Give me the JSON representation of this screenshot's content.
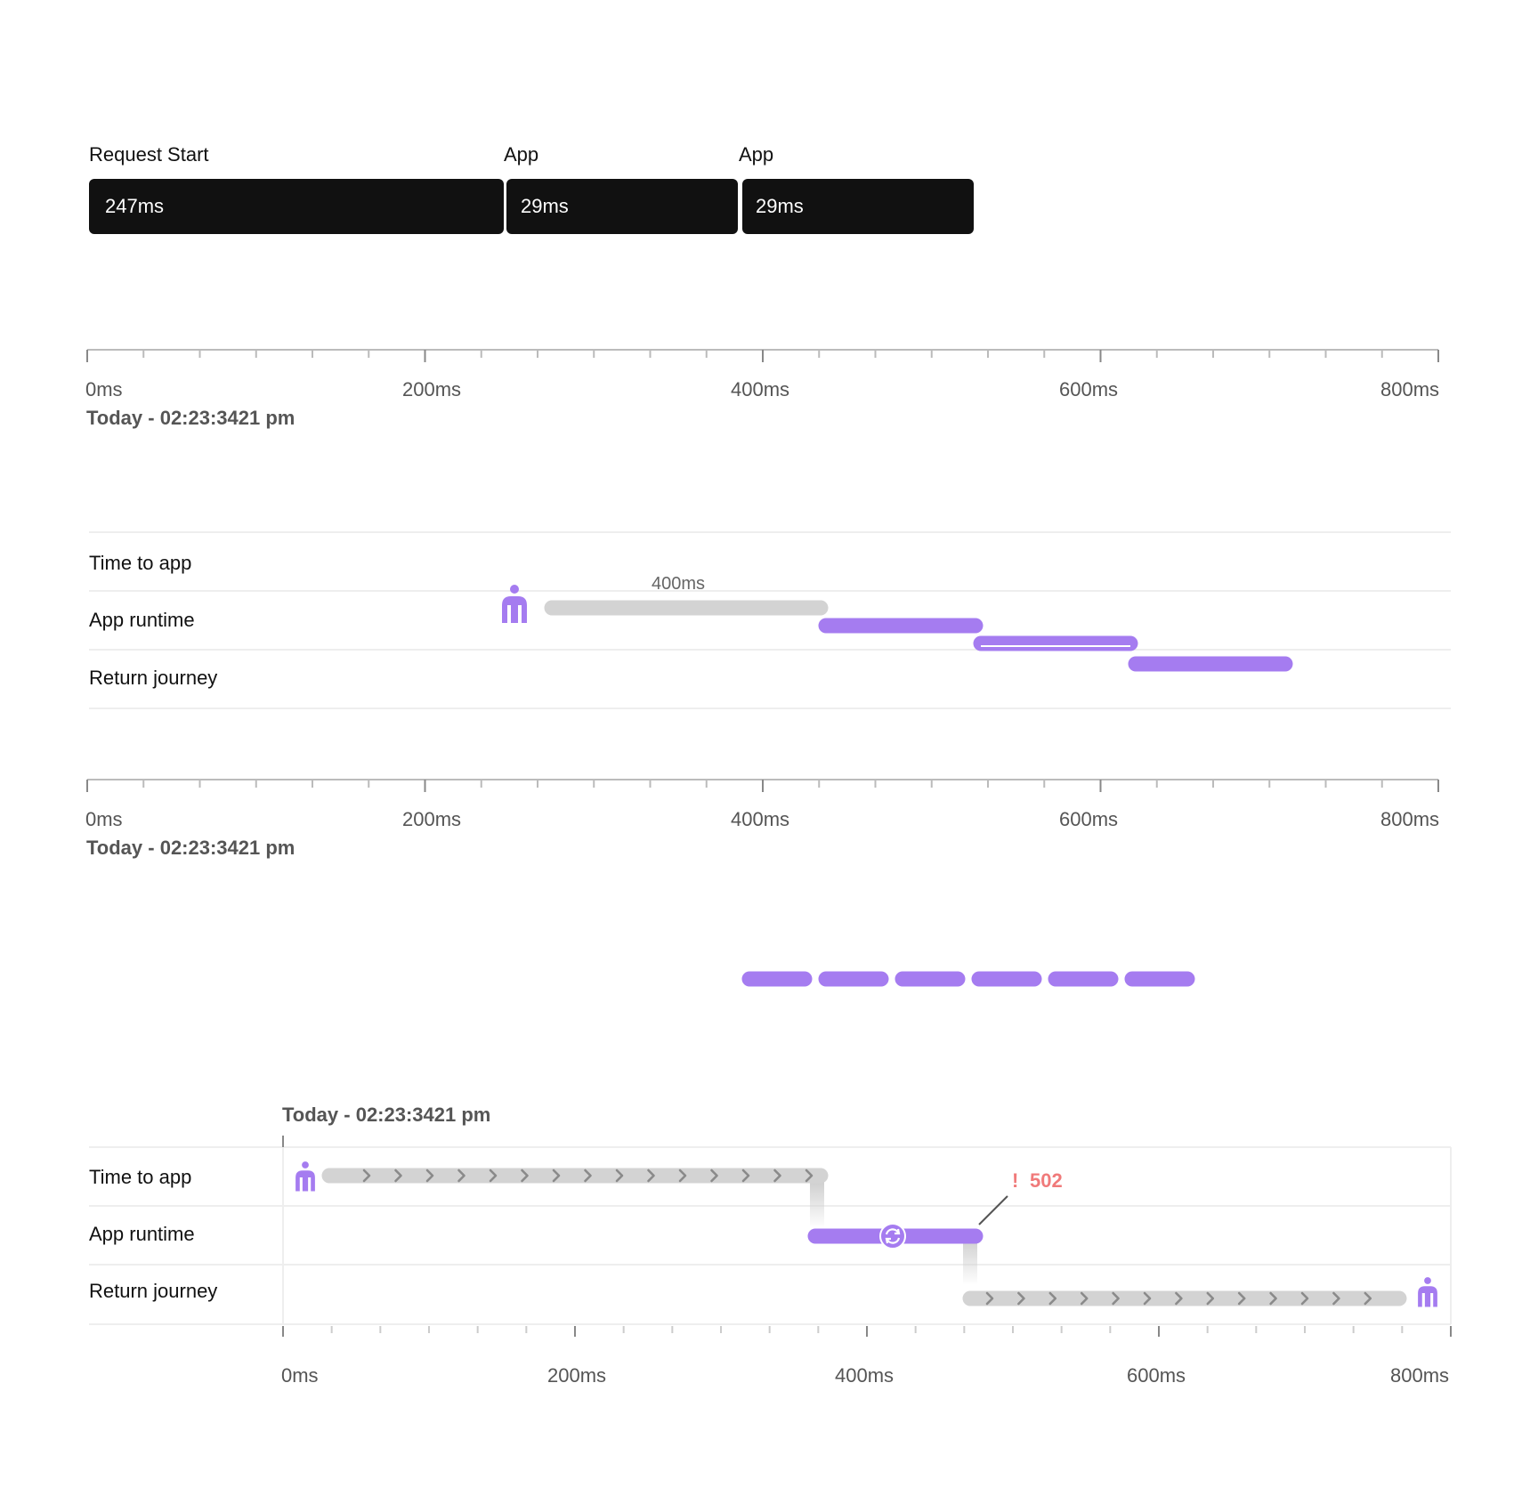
{
  "colors": {
    "segment": "#111111",
    "purple": "#a57cf0",
    "grey_bar": "#d3d3d3",
    "chevron": "#8a8a8a",
    "axis": "#bbbbbb",
    "error": "#f07a7a",
    "text": "#111111",
    "muted": "#555555"
  },
  "segments": [
    {
      "title": "Request Start",
      "value": "247ms"
    },
    {
      "title": "App",
      "value": "29ms"
    },
    {
      "title": "App",
      "value": "29ms"
    }
  ],
  "axis": {
    "ticks": [
      "0ms",
      "200ms",
      "400ms",
      "600ms",
      "800ms"
    ],
    "timestamp": "Today - 02:23:3421 pm"
  },
  "rows": [
    "Time to app",
    "App runtime",
    "Return journey"
  ],
  "panel2": {
    "duration_label": "400ms",
    "icons": [
      "person-icon"
    ]
  },
  "panel4": {
    "error_label": "502",
    "error_mark": "!",
    "icons": [
      "person-icon",
      "refresh-icon",
      "person-icon"
    ]
  },
  "chart_data": {
    "type": "timeline",
    "x_unit": "ms",
    "xlim": [
      0,
      800
    ],
    "x_ticks": [
      0,
      200,
      400,
      600,
      800
    ]
  }
}
